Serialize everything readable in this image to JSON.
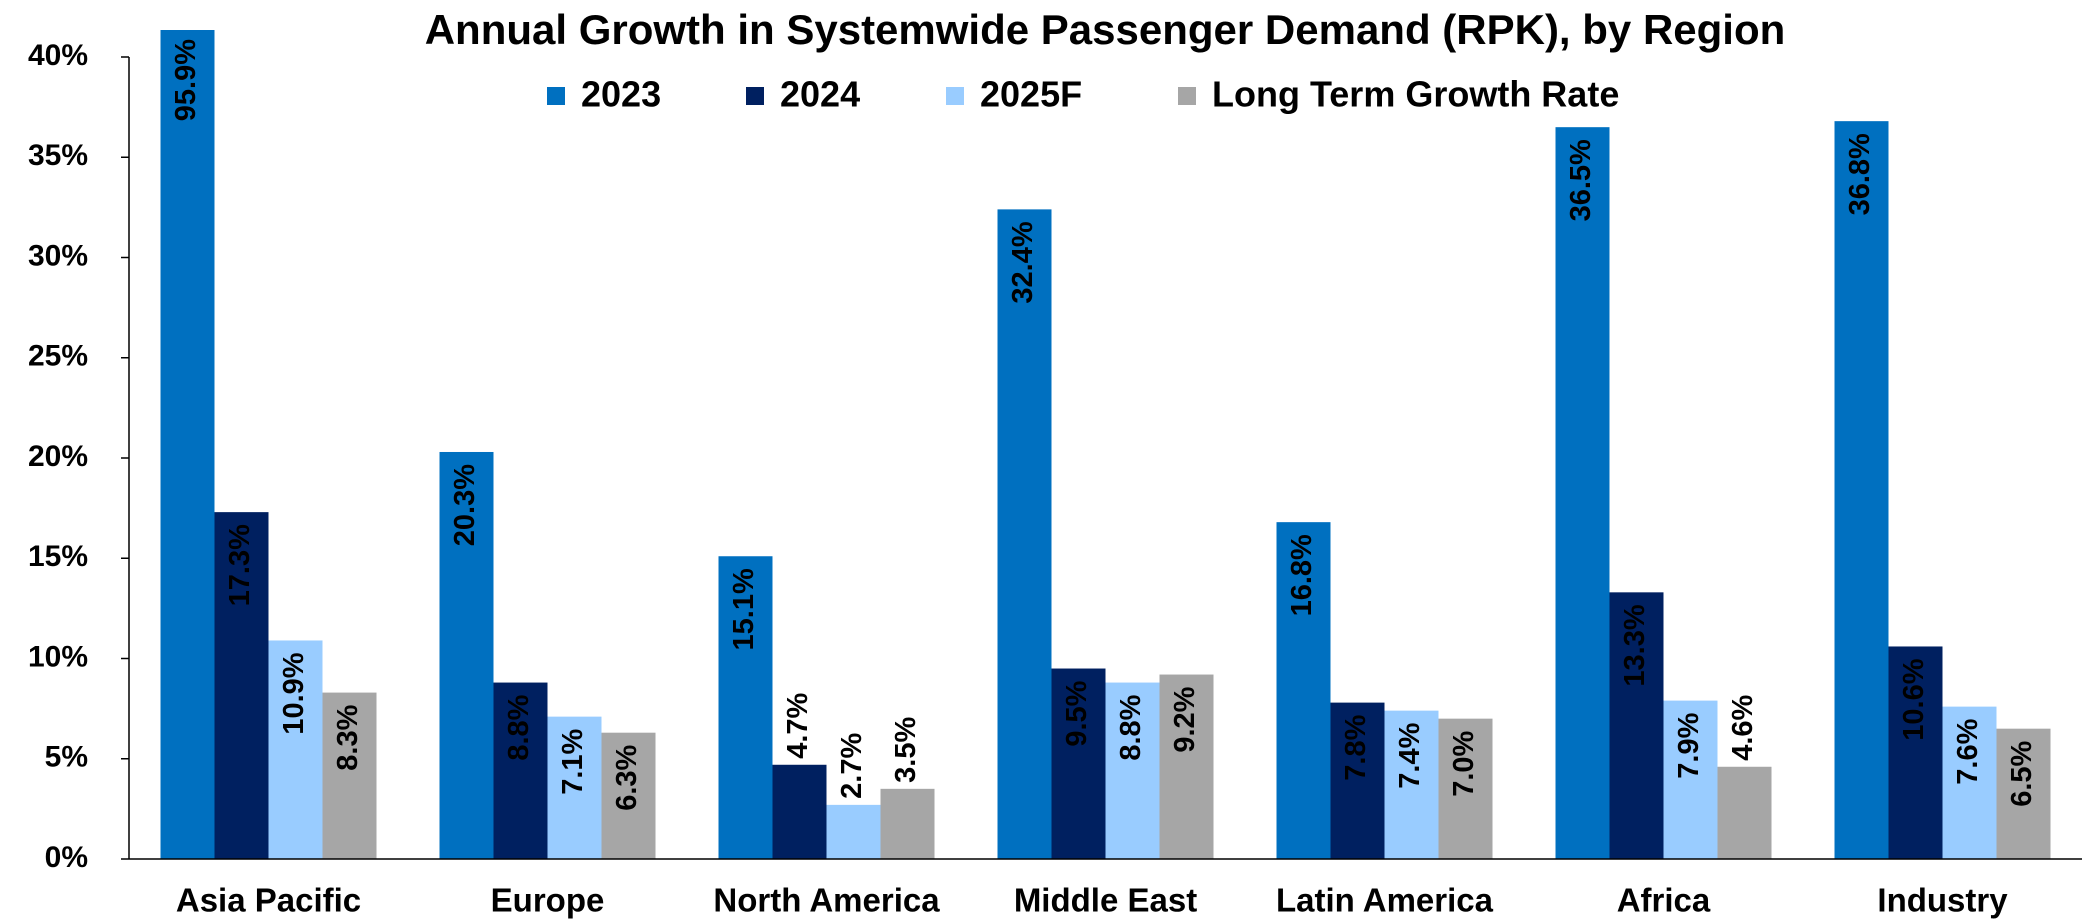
{
  "chart_data": {
    "type": "bar",
    "title": "Annual Growth in Systemwide Passenger Demand (RPK), by Region",
    "categories": [
      "Asia Pacific",
      "Europe",
      "North America",
      "Middle East",
      "Latin America",
      "Africa",
      "Industry"
    ],
    "series": [
      {
        "name": "2023",
        "color": "#0070c0",
        "values": [
          95.9,
          20.3,
          15.1,
          32.4,
          16.8,
          36.5,
          36.8
        ],
        "value_labels": [
          "95.9%",
          "20.3%",
          "15.1%",
          "32.4%",
          "16.8%",
          "36.5%",
          "36.8%"
        ]
      },
      {
        "name": "2024",
        "color": "#002060",
        "values": [
          17.3,
          8.8,
          4.7,
          9.5,
          7.8,
          13.3,
          10.6
        ],
        "value_labels": [
          "17.3%",
          "8.8%",
          "4.7%",
          "9.5%",
          "7.8%",
          "13.3%",
          "10.6%"
        ]
      },
      {
        "name": "2025F",
        "color": "#99ccff",
        "values": [
          10.9,
          7.1,
          2.7,
          8.8,
          7.4,
          7.9,
          7.6
        ],
        "value_labels": [
          "10.9%",
          "7.1%",
          "2.7%",
          "8.8%",
          "7.4%",
          "7.9%",
          "7.6%"
        ]
      },
      {
        "name": "Long Term Growth Rate",
        "color": "#a6a6a6",
        "values": [
          8.3,
          6.3,
          3.5,
          9.2,
          7.0,
          4.6,
          6.5
        ],
        "value_labels": [
          "8.3%",
          "6.3%",
          "3.5%",
          "9.2%",
          "7.0%",
          "4.6%",
          "6.5%"
        ]
      }
    ],
    "ylim": [
      0,
      40
    ],
    "yticks": [
      {
        "value": 0,
        "label": "0%"
      },
      {
        "value": 5,
        "label": "5%"
      },
      {
        "value": 10,
        "label": "10%"
      },
      {
        "value": 15,
        "label": "15%"
      },
      {
        "value": 20,
        "label": "20%"
      },
      {
        "value": 25,
        "label": "25%"
      },
      {
        "value": 30,
        "label": "30%"
      },
      {
        "value": 35,
        "label": "35%"
      },
      {
        "value": 40,
        "label": "40%"
      }
    ],
    "legend": "top"
  }
}
